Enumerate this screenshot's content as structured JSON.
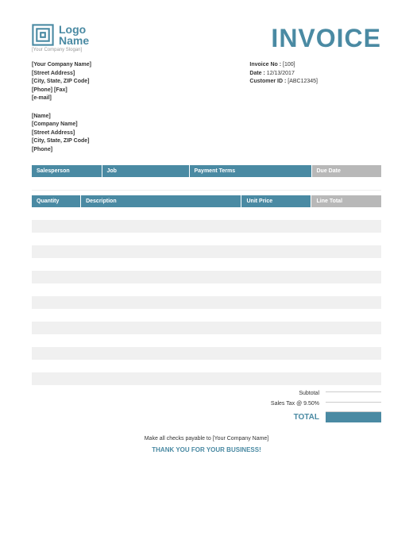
{
  "header": {
    "logo_text_line1": "Logo",
    "logo_text_line2": "Name",
    "slogan": "[Your Company Slogan]",
    "invoice_title": "INVOICE",
    "logo_color": "#4a8aa3"
  },
  "company": {
    "name": "[Your Company Name]",
    "street": "[Street Address]",
    "city": "[City, State, ZIP Code]",
    "phone_fax": "[Phone] [Fax]",
    "email": "[e-mail]"
  },
  "invoice_meta": {
    "no_label": "Invoice No :",
    "no_value": "[100]",
    "date_label": "Date :",
    "date_value": "12/13/2017",
    "customer_label": "Customer ID :",
    "customer_value": "[ABC12345]"
  },
  "bill_to": {
    "name": "[Name]",
    "company": "[Company Name]",
    "street": "[Street Address]",
    "city": "[City, State, ZIP Code]",
    "phone": "[Phone]"
  },
  "meta_table": {
    "headers": {
      "salesperson": "Salesperson",
      "job": "Job",
      "terms": "Payment Terms",
      "due": "Due Date"
    },
    "row": {
      "salesperson": "",
      "job": "",
      "terms": "",
      "due": ""
    }
  },
  "items_table": {
    "headers": {
      "qty": "Quantity",
      "desc": "Description",
      "price": "Unit Price",
      "total": "Line Total"
    },
    "row_count": 14,
    "colors": {
      "header_bg": "#4a8aa3",
      "header_alt_bg": "#b8b8b8",
      "stripe": "#f0f0f0"
    }
  },
  "totals": {
    "subtotal_label": "Subtotal",
    "tax_label": "Sales Tax @",
    "tax_rate": "9.50%",
    "total_label": "TOTAL"
  },
  "footer": {
    "payable": "Make all checks payable to [Your Company Name]",
    "thanks": "THANK YOU FOR YOUR BUSINESS!"
  }
}
